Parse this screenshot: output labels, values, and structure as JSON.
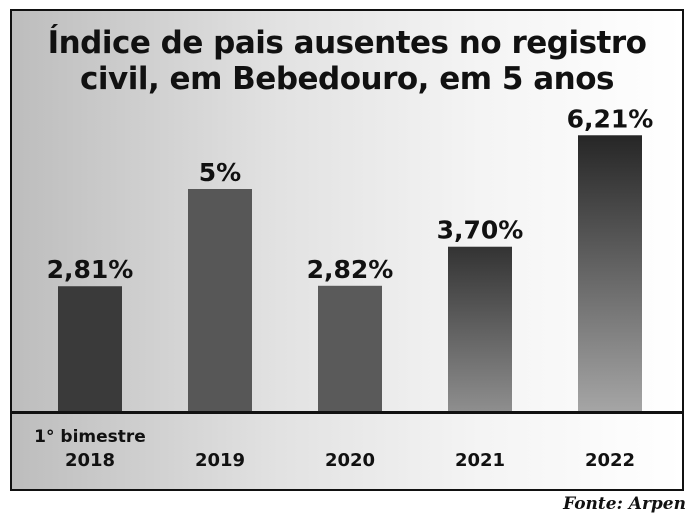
{
  "title_line1": "Índice de pais ausentes no registro",
  "title_line2": "civil, em Bebedouro, em 5 anos",
  "source": "Fonte: Arpen",
  "categories": [
    {
      "line1": "1° bimestre",
      "line2": "2018"
    },
    {
      "line1": "",
      "line2": "2019"
    },
    {
      "line1": "",
      "line2": "2020"
    },
    {
      "line1": "",
      "line2": "2021"
    },
    {
      "line1": "",
      "line2": "2022"
    }
  ],
  "chart_data": {
    "type": "bar",
    "title": "Índice de pais ausentes no registro civil, em Bebedouro, em 5 anos",
    "categories": [
      "1° bimestre 2018",
      "2019",
      "2020",
      "2021",
      "2022"
    ],
    "values": [
      2.81,
      5.0,
      2.82,
      3.7,
      6.21
    ],
    "value_labels": [
      "2,81%",
      "5%",
      "2,82%",
      "3,70%",
      "6,21%"
    ],
    "unit": "%",
    "grid": false,
    "legend": "none"
  },
  "colors": {
    "bar_dark": "#2f2f2f",
    "bar_mid": "#555555",
    "bar_light": "#a0a0a0",
    "axis": "#111111"
  }
}
